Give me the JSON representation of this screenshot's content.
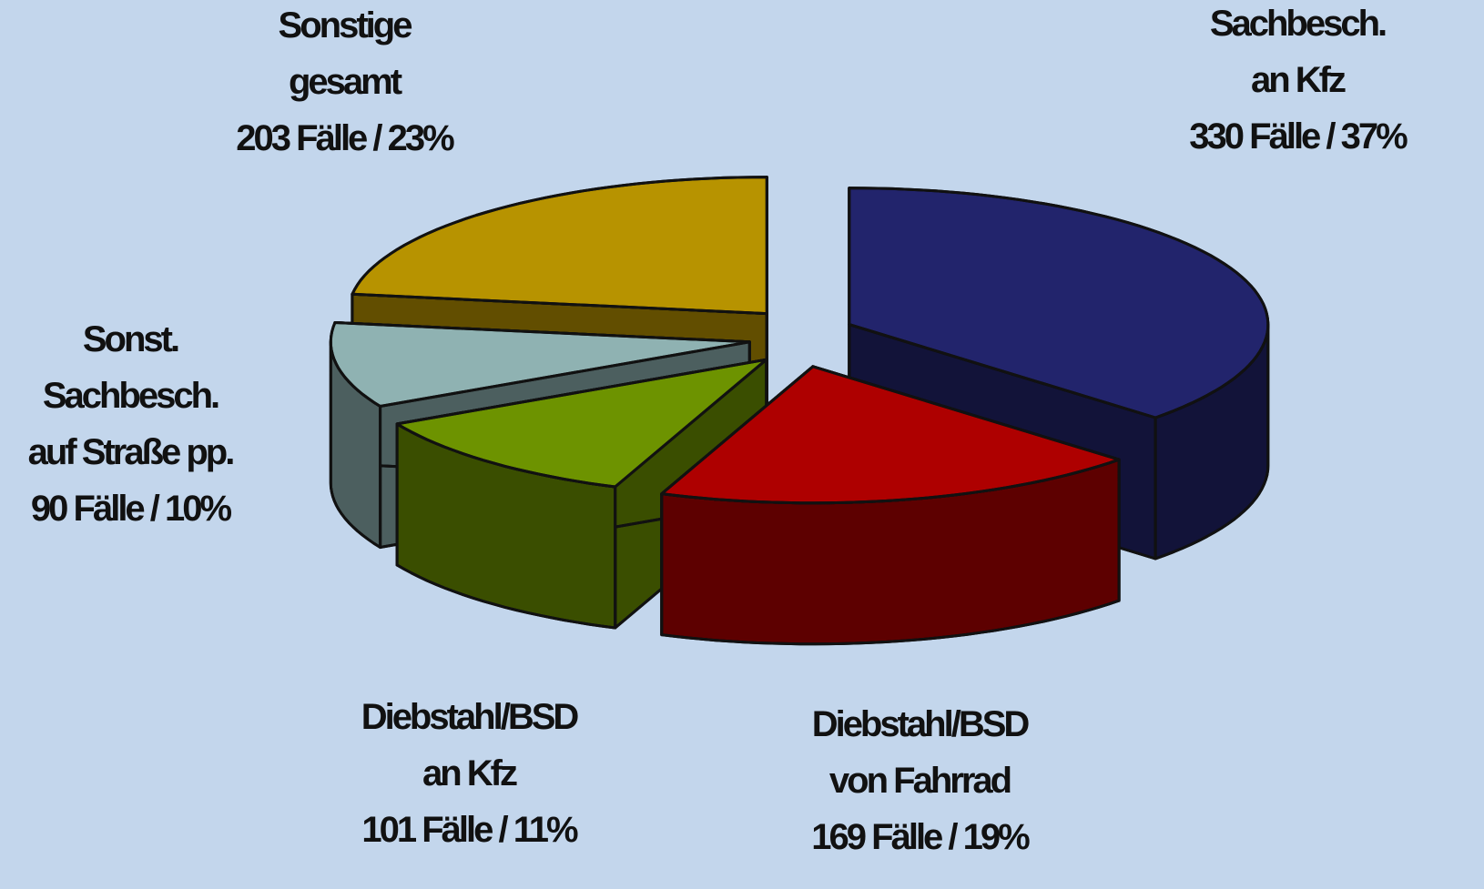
{
  "chart_data": {
    "type": "pie3d",
    "categories": [
      [
        "Sachbesch.",
        "an Kfz"
      ],
      [
        "Diebstahl/BSD",
        "von Fahrrad"
      ],
      [
        "Diebstahl/BSD",
        "an Kfz"
      ],
      [
        "Sonst.",
        "Sachbesch.",
        "auf Straße pp."
      ],
      [
        "Sonstige",
        "gesamt"
      ]
    ],
    "values": [
      330,
      169,
      101,
      90,
      203
    ],
    "value_labels": [
      "330 Fälle / 37%",
      "169 Fälle / 19%",
      "101 Fälle / 11%",
      "90 Fälle / 10%",
      "203 Fälle / 23%"
    ],
    "colors": [
      "#2e3190",
      "#e80000",
      "#92c400",
      "#bfeeee",
      "#f5c400"
    ]
  }
}
